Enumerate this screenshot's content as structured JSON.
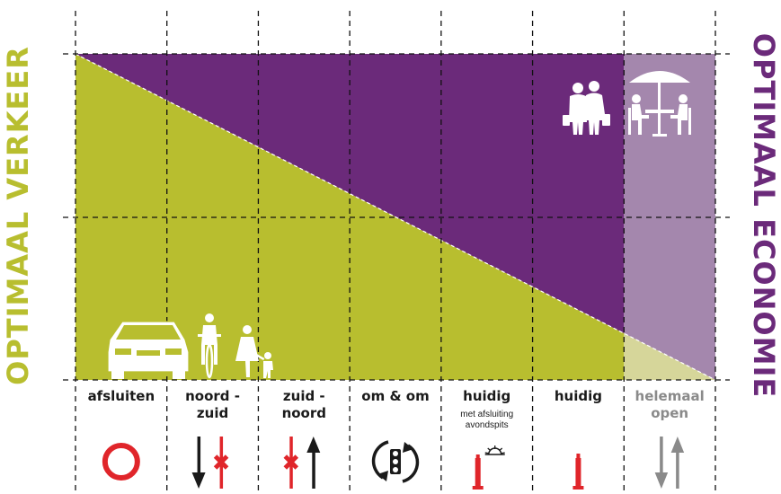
{
  "titles": {
    "left": "OPTIMAAL VERKEER",
    "right": "OPTIMAAL ECONOMIE"
  },
  "columns": [
    {
      "label_lines": [
        "afsluiten"
      ],
      "icon": "circle-prohibited-icon",
      "color": "#1a1a1a"
    },
    {
      "label_lines": [
        "noord -",
        "zuid"
      ],
      "icon": "down-arrow-blocked-up-icon",
      "color": "#1a1a1a"
    },
    {
      "label_lines": [
        "zuid -",
        "noord"
      ],
      "icon": "blocked-down-up-arrow-icon",
      "color": "#1a1a1a"
    },
    {
      "label_lines": [
        "om & om"
      ],
      "icon": "traffic-light-cycle-icon",
      "color": "#1a1a1a"
    },
    {
      "label_lines": [
        "huidig"
      ],
      "sub_lines": [
        "met afsluiting",
        "avondspits"
      ],
      "icon": "bollard-with-sunset-icon",
      "color": "#1a1a1a"
    },
    {
      "label_lines": [
        "huidig"
      ],
      "icon": "bollard-icon",
      "color": "#1a1a1a"
    },
    {
      "label_lines": [
        "helemaal",
        "open"
      ],
      "icon": "two-way-arrows-icon",
      "color": "#8a8a8a"
    }
  ],
  "colors": {
    "green": "#b8be2f",
    "purple": "#6b2a7a",
    "light_purple": "#a487ad",
    "light_green": "#d6d69a",
    "red": "#e0252a",
    "gray": "#8a8a8a",
    "dark": "#1a1a1a"
  },
  "icons": {
    "top_right": [
      "shoppers-icon",
      "terrace-dining-icon"
    ],
    "bottom_left": [
      "car-icon",
      "cyclist-icon",
      "pedestrians-icon"
    ]
  }
}
